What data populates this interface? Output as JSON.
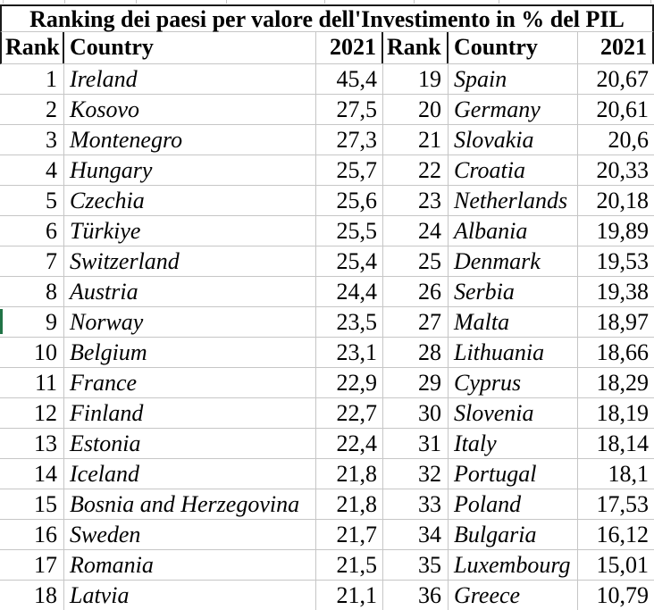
{
  "title": "Ranking dei paesi per valore dell'Investimento in % del PIL",
  "headers": [
    "Rank",
    "Country",
    "2021",
    "Rank",
    "Country",
    "2021"
  ],
  "chart_data": {
    "type": "table",
    "title": "Ranking dei paesi per valore dell'Investimento in % del PIL",
    "columns": [
      "Rank",
      "Country",
      "2021"
    ],
    "rows": [
      [
        1,
        "Ireland",
        "45,4"
      ],
      [
        2,
        "Kosovo",
        "27,5"
      ],
      [
        3,
        "Montenegro",
        "27,3"
      ],
      [
        4,
        "Hungary",
        "25,7"
      ],
      [
        5,
        "Czechia",
        "25,6"
      ],
      [
        6,
        "Türkiye",
        "25,5"
      ],
      [
        7,
        "Switzerland",
        "25,4"
      ],
      [
        8,
        "Austria",
        "24,4"
      ],
      [
        9,
        "Norway",
        "23,5"
      ],
      [
        10,
        "Belgium",
        "23,1"
      ],
      [
        11,
        "France",
        "22,9"
      ],
      [
        12,
        "Finland",
        "22,7"
      ],
      [
        13,
        "Estonia",
        "22,4"
      ],
      [
        14,
        "Iceland",
        "21,8"
      ],
      [
        15,
        "Bosnia and Herzegovina",
        "21,8"
      ],
      [
        16,
        "Sweden",
        "21,7"
      ],
      [
        17,
        "Romania",
        "21,5"
      ],
      [
        18,
        "Latvia",
        "21,1"
      ],
      [
        19,
        "Spain",
        "20,67"
      ],
      [
        20,
        "Germany",
        "20,61"
      ],
      [
        21,
        "Slovakia",
        "20,6"
      ],
      [
        22,
        "Croatia",
        "20,33"
      ],
      [
        23,
        "Netherlands",
        "20,18"
      ],
      [
        24,
        "Albania",
        "19,89"
      ],
      [
        25,
        "Denmark",
        "19,53"
      ],
      [
        26,
        "Serbia",
        "19,38"
      ],
      [
        27,
        "Malta",
        "18,97"
      ],
      [
        28,
        "Lithuania",
        "18,66"
      ],
      [
        29,
        "Cyprus",
        "18,29"
      ],
      [
        30,
        "Slovenia",
        "18,19"
      ],
      [
        31,
        "Italy",
        "18,14"
      ],
      [
        32,
        "Portugal",
        "18,1"
      ],
      [
        33,
        "Poland",
        "17,53"
      ],
      [
        34,
        "Bulgaria",
        "16,12"
      ],
      [
        35,
        "Luxembourg",
        "15,01"
      ],
      [
        36,
        "Greece",
        "10,79"
      ]
    ]
  },
  "colors": {
    "background": "#ffffff",
    "text": "#000000",
    "gridline": "#c6c6c6",
    "outline": "#1a1a1a",
    "sheet_edge_green": "#217346"
  }
}
